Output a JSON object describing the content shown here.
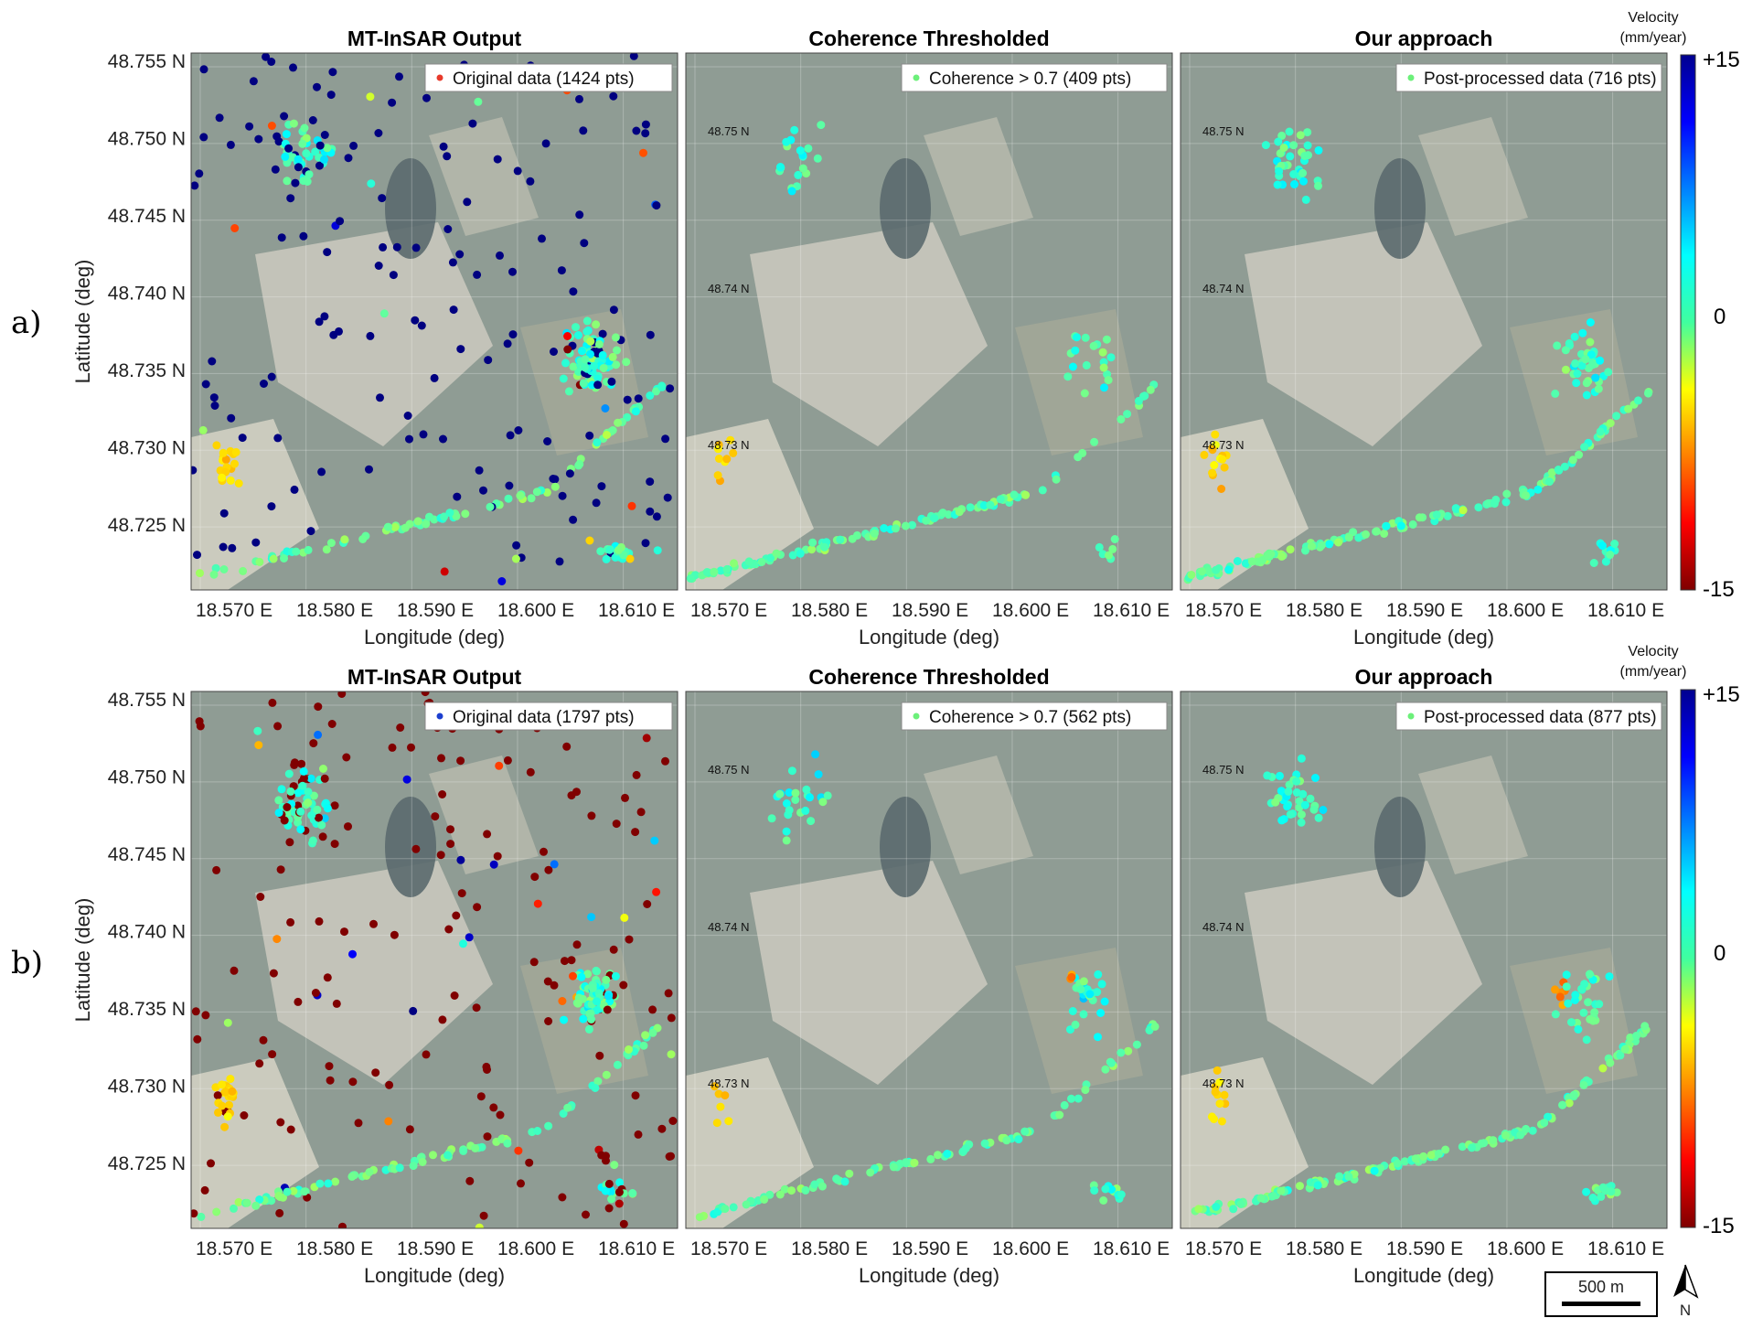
{
  "row_labels": [
    "a)",
    "b)"
  ],
  "panel_titles": [
    "MT-InSAR Output",
    "Coherence Thresholded",
    "Our approach"
  ],
  "xlabel": "Longitude (deg)",
  "ylabel": "Latitude (deg)",
  "x_ticks": [
    "18.570 E",
    "18.580 E",
    "18.590 E",
    "18.600 E",
    "18.610 E"
  ],
  "y_ticks": [
    "48.755 N",
    "48.750 N",
    "48.745 N",
    "48.740 N",
    "48.735 N",
    "48.730 N",
    "48.725 N"
  ],
  "map_lat_labels": [
    "48.75 N",
    "48.74 N",
    "48.73 N"
  ],
  "colorbar": {
    "title_line1": "Velocity",
    "title_line2": "(mm/year)",
    "max_label": "+15",
    "mid_label": "0",
    "min_label": "-15",
    "range": [
      -15,
      15
    ],
    "colormap": "jet"
  },
  "scale_bar": "500 m",
  "north_label": "N",
  "colors": {
    "map_background": "#8f9c94",
    "field_light": "#c9c8bd",
    "red_marker": "#e8392b",
    "blue_marker": "#1c3fcf",
    "green_marker": "#6cf07a"
  },
  "chart_data": [
    {
      "type": "scatter",
      "title": "MT-InSAR Output",
      "row": "a",
      "legend": "Original data (1424 pts)",
      "legend_marker": "red",
      "points": 1424,
      "xlabel": "Longitude (deg)",
      "ylabel": "Latitude (deg)",
      "xlim": [
        18.5655,
        18.6115
      ],
      "ylim": [
        48.721,
        48.756
      ]
    },
    {
      "type": "scatter",
      "title": "Coherence Thresholded",
      "row": "a",
      "legend": "Coherence > 0.7 (409 pts)",
      "legend_marker": "green",
      "points": 409,
      "xlabel": "Longitude (deg)",
      "xlim": [
        18.5655,
        18.6115
      ],
      "ylim": [
        48.721,
        48.756
      ]
    },
    {
      "type": "scatter",
      "title": "Our approach",
      "row": "a",
      "legend": "Post-processed data (716 pts)",
      "legend_marker": "green",
      "points": 716,
      "xlabel": "Longitude (deg)",
      "xlim": [
        18.5655,
        18.6115
      ],
      "ylim": [
        48.721,
        48.756
      ]
    },
    {
      "type": "scatter",
      "title": "MT-InSAR Output",
      "row": "b",
      "legend": "Original data (1797 pts)",
      "legend_marker": "blue",
      "points": 1797,
      "xlabel": "Longitude (deg)",
      "ylabel": "Latitude (deg)",
      "xlim": [
        18.5655,
        18.6115
      ],
      "ylim": [
        48.721,
        48.756
      ]
    },
    {
      "type": "scatter",
      "title": "Coherence Thresholded",
      "row": "b",
      "legend": "Coherence > 0.7 (562 pts)",
      "legend_marker": "green",
      "points": 562,
      "xlabel": "Longitude (deg)",
      "xlim": [
        18.5655,
        18.6115
      ],
      "ylim": [
        48.721,
        48.756
      ]
    },
    {
      "type": "scatter",
      "title": "Our approach",
      "row": "b",
      "legend": "Post-processed data (877 pts)",
      "legend_marker": "green",
      "points": 877,
      "xlabel": "Longitude (deg)",
      "xlim": [
        18.5655,
        18.6115
      ],
      "ylim": [
        48.721,
        48.756
      ]
    }
  ]
}
